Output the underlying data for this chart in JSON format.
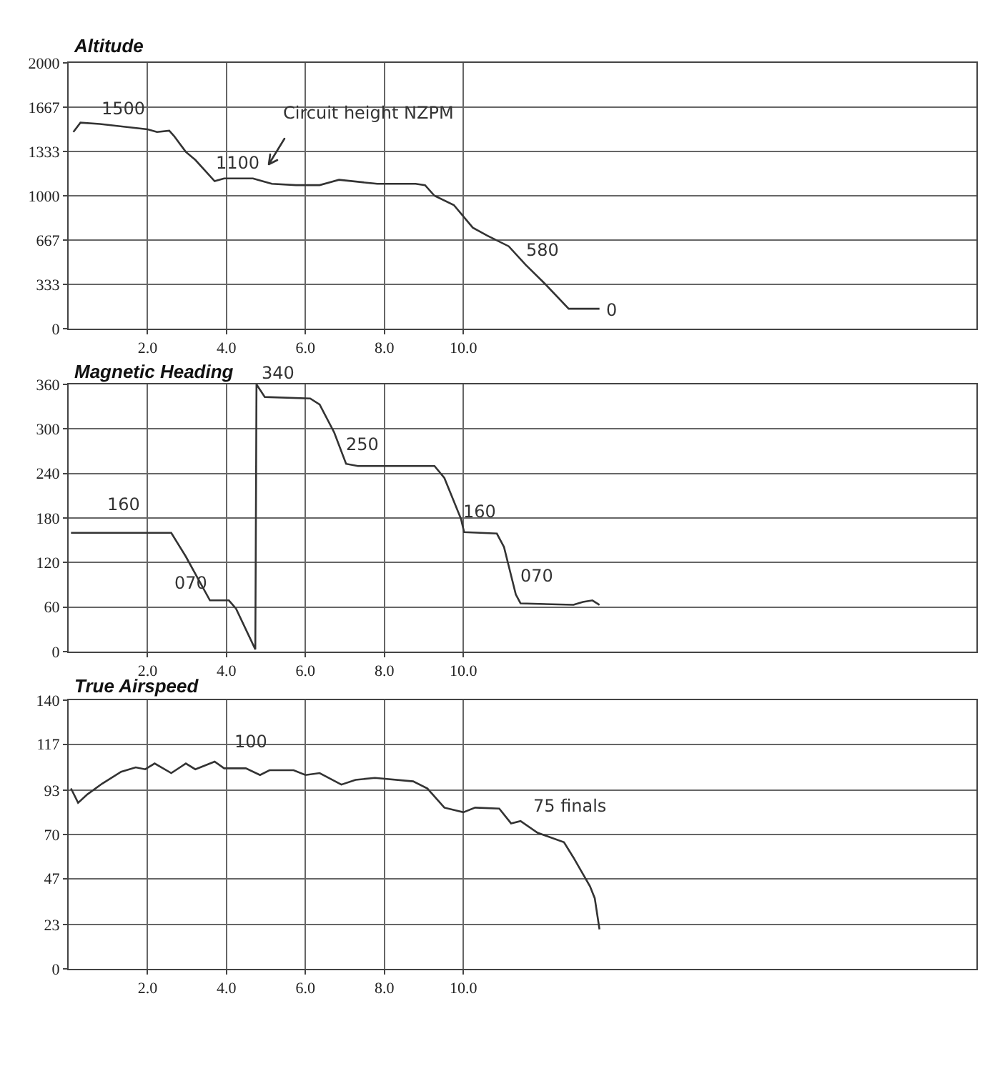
{
  "chart_data": [
    {
      "type": "line",
      "title": "Altitude",
      "legend": false,
      "grid": true,
      "xlim": [
        0,
        23
      ],
      "ylim": [
        0,
        2000
      ],
      "xticks": [
        {
          "value": 2,
          "label": "2.0"
        },
        {
          "value": 4,
          "label": "4.0"
        },
        {
          "value": 6,
          "label": "6.0"
        },
        {
          "value": 8,
          "label": "8.0"
        },
        {
          "value": 10,
          "label": "10.0"
        }
      ],
      "yticks": [
        0,
        333,
        667,
        1000,
        1333,
        1667,
        2000
      ],
      "x": [
        0.12,
        0.3,
        0.79,
        1.39,
        2.0,
        2.24,
        2.55,
        2.67,
        2.97,
        3.21,
        3.7,
        3.94,
        4.67,
        5.15,
        5.76,
        6.36,
        6.85,
        7.82,
        8.79,
        9.03,
        9.27,
        9.76,
        10.24,
        10.61,
        11.15,
        11.58,
        12.06,
        12.67,
        13.45
      ],
      "series": [
        {
          "color": "#333333",
          "values": [
            1480,
            1550,
            1540,
            1520,
            1500,
            1480,
            1490,
            1450,
            1330,
            1270,
            1110,
            1130,
            1130,
            1090,
            1080,
            1080,
            1120,
            1090,
            1090,
            1080,
            1000,
            930,
            760,
            700,
            620,
            480,
            340,
            150,
            150
          ]
        }
      ],
      "annotations": [
        "1500",
        "Circuit height NZPM",
        "1100",
        "580",
        "0"
      ]
    },
    {
      "type": "line",
      "title": "Magnetic Heading",
      "legend": false,
      "grid": true,
      "xlim": [
        0,
        23
      ],
      "ylim": [
        0,
        360
      ],
      "xticks": [
        {
          "value": 2,
          "label": "2.0"
        },
        {
          "value": 4,
          "label": "4.0"
        },
        {
          "value": 6,
          "label": "6.0"
        },
        {
          "value": 8,
          "label": "8.0"
        },
        {
          "value": 10,
          "label": "10.0"
        }
      ],
      "yticks": [
        0,
        60,
        120,
        180,
        240,
        300,
        360
      ],
      "x": [
        0.06,
        2.6,
        2.97,
        3.58,
        4.06,
        4.24,
        4.73,
        4.76,
        4.97,
        6.12,
        6.36,
        6.73,
        7.03,
        7.33,
        9.27,
        9.52,
        9.94,
        10.02,
        10.85,
        11.03,
        11.33,
        11.45,
        12.79,
        13.03,
        13.27,
        13.45
      ],
      "series": [
        {
          "color": "#333333",
          "values": [
            160,
            160,
            128,
            69,
            69,
            58,
            3,
            360,
            343,
            341,
            333,
            295,
            253,
            250,
            250,
            234,
            179,
            161,
            159,
            141,
            77,
            65,
            63,
            67,
            69,
            63
          ]
        }
      ],
      "annotations": [
        "160",
        "070",
        "340",
        "250",
        "160",
        "070"
      ]
    },
    {
      "type": "line",
      "title": "True Airspeed",
      "legend": false,
      "grid": true,
      "xlim": [
        0,
        23
      ],
      "ylim": [
        0,
        140
      ],
      "xticks": [
        {
          "value": 2,
          "label": "2.0"
        },
        {
          "value": 4,
          "label": "4.0"
        },
        {
          "value": 6,
          "label": "6.0"
        },
        {
          "value": 8,
          "label": "8.0"
        },
        {
          "value": 10,
          "label": "10.0"
        }
      ],
      "yticks": [
        0,
        23,
        47,
        70,
        93,
        117,
        140
      ],
      "x": [
        0.06,
        0.24,
        0.48,
        0.85,
        1.33,
        1.7,
        1.94,
        2.18,
        2.6,
        2.97,
        3.21,
        3.7,
        3.94,
        4.49,
        4.85,
        5.09,
        5.7,
        6.0,
        6.36,
        6.91,
        7.27,
        7.76,
        8.73,
        9.09,
        9.52,
        10.0,
        10.3,
        10.91,
        11.21,
        11.45,
        11.88,
        12.55,
        12.79,
        13.21,
        13.33,
        13.45
      ],
      "series": [
        {
          "color": "#333333",
          "values": [
            94,
            86.5,
            91,
            96.5,
            102.7,
            105,
            104,
            107,
            102,
            107,
            104,
            108,
            104.5,
            104.5,
            101,
            103.5,
            103.5,
            101,
            102,
            96,
            98.5,
            99.5,
            97.7,
            94,
            84,
            81.6,
            84,
            83.5,
            75.8,
            77,
            70.9,
            66,
            58,
            43,
            36.8,
            20.6
          ]
        }
      ],
      "annotations": [
        "100",
        "75 finals"
      ]
    }
  ]
}
